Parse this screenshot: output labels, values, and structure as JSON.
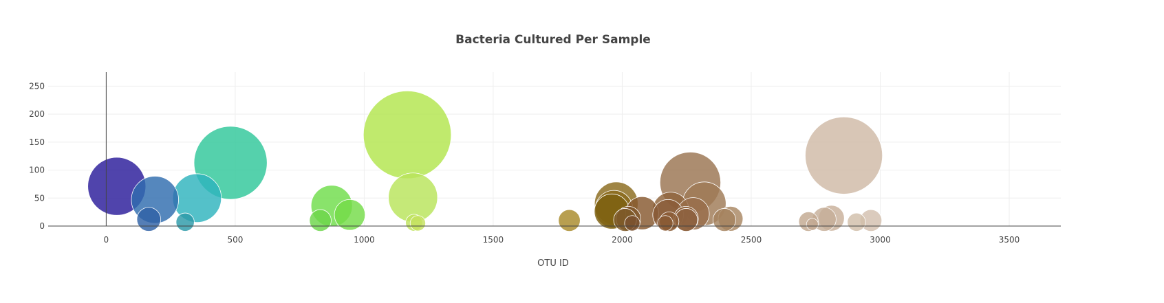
{
  "chart_data": {
    "type": "scatter",
    "title": "Bacteria Cultured Per Sample",
    "xlabel": "OTU ID",
    "ylabel": "",
    "xlim": [
      -225,
      3700
    ],
    "ylim": [
      0,
      275
    ],
    "xticks": [
      0,
      500,
      1000,
      1500,
      2000,
      2500,
      3000,
      3500
    ],
    "yticks": [
      0,
      50,
      100,
      150,
      200,
      250
    ],
    "grid": true,
    "colorscale": "Earth",
    "points": [
      {
        "x": 41,
        "y": 71,
        "color": "#2a1b9a"
      },
      {
        "x": 165,
        "y": 12,
        "color": "#2f62a6"
      },
      {
        "x": 189,
        "y": 47,
        "color": "#2f6dae"
      },
      {
        "x": 306,
        "y": 7,
        "color": "#2c9aa8"
      },
      {
        "x": 352,
        "y": 50,
        "color": "#2eb3bd"
      },
      {
        "x": 482,
        "y": 113,
        "color": "#2fc79a"
      },
      {
        "x": 830,
        "y": 10,
        "color": "#6dd64a"
      },
      {
        "x": 874,
        "y": 36,
        "color": "#6fdd4a"
      },
      {
        "x": 944,
        "y": 20,
        "color": "#74dc48"
      },
      {
        "x": 1167,
        "y": 163,
        "color": "#b2e54d"
      },
      {
        "x": 1189,
        "y": 51,
        "color": "#b8e45a"
      },
      {
        "x": 1193,
        "y": 6,
        "color": "#bfe35f"
      },
      {
        "x": 1208,
        "y": 5,
        "color": "#c5e25f"
      },
      {
        "x": 1795,
        "y": 10,
        "color": "#a88a2a"
      },
      {
        "x": 1960,
        "y": 26,
        "color": "#7d6010"
      },
      {
        "x": 1968,
        "y": 30,
        "color": "#8a6a1c"
      },
      {
        "x": 1977,
        "y": 40,
        "color": "#8a6a1c"
      },
      {
        "x": 2011,
        "y": 11,
        "color": "#7e5a28"
      },
      {
        "x": 2024,
        "y": 13,
        "color": "#80582c"
      },
      {
        "x": 2039,
        "y": 5,
        "color": "#7a5030"
      },
      {
        "x": 2077,
        "y": 23,
        "color": "#86582e"
      },
      {
        "x": 2167,
        "y": 5,
        "color": "#8a5a34"
      },
      {
        "x": 2178,
        "y": 20,
        "color": "#8a5c38"
      },
      {
        "x": 2188,
        "y": 28,
        "color": "#8f643c"
      },
      {
        "x": 2182,
        "y": 8,
        "color": "#8c5e38"
      },
      {
        "x": 2247,
        "y": 13,
        "color": "#906440"
      },
      {
        "x": 2248,
        "y": 11,
        "color": "#8e6240"
      },
      {
        "x": 2264,
        "y": 78,
        "color": "#9a7450"
      },
      {
        "x": 2275,
        "y": 22,
        "color": "#996e4a"
      },
      {
        "x": 2318,
        "y": 40,
        "color": "#9f7a56"
      },
      {
        "x": 2396,
        "y": 11,
        "color": "#a5825e"
      },
      {
        "x": 2420,
        "y": 13,
        "color": "#a88662"
      },
      {
        "x": 2722,
        "y": 8,
        "color": "#c2a890"
      },
      {
        "x": 2737,
        "y": 3,
        "color": "#c3aa92"
      },
      {
        "x": 2783,
        "y": 12,
        "color": "#c6ae98"
      },
      {
        "x": 2811,
        "y": 14,
        "color": "#c8b09a"
      },
      {
        "x": 2859,
        "y": 126,
        "color": "#cfbaa6"
      },
      {
        "x": 2908,
        "y": 7,
        "color": "#d1beaa"
      },
      {
        "x": 2964,
        "y": 10,
        "color": "#d3c0ae"
      }
    ]
  }
}
